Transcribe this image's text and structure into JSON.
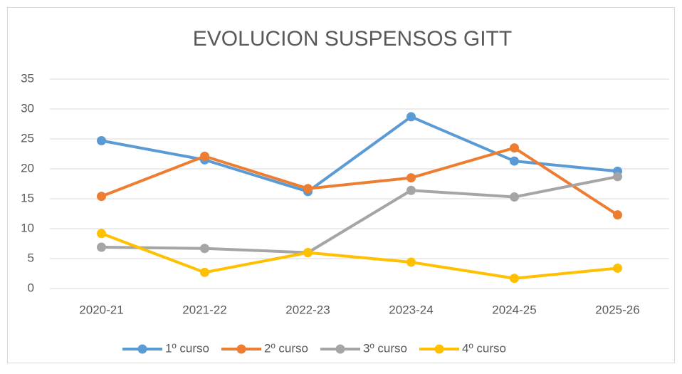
{
  "chart_data": {
    "type": "line",
    "title": "EVOLUCION SUSPENSOS GITT",
    "categories": [
      "2020-21",
      "2021-22",
      "2022-23",
      "2023-24",
      "2024-25",
      "2025-26"
    ],
    "series": [
      {
        "name": "1º curso",
        "color": "#5b9bd5",
        "values": [
          24.7,
          21.5,
          16.2,
          28.7,
          21.3,
          19.6
        ]
      },
      {
        "name": "2º curso",
        "color": "#ed7d31",
        "values": [
          15.4,
          22.1,
          16.7,
          18.5,
          23.5,
          12.3
        ]
      },
      {
        "name": "3º curso",
        "color": "#a5a5a5",
        "values": [
          6.9,
          6.7,
          6.0,
          16.4,
          15.3,
          18.7
        ]
      },
      {
        "name": "4º curso",
        "color": "#ffc000",
        "values": [
          9.2,
          2.7,
          6.0,
          4.4,
          1.7,
          3.4
        ]
      }
    ],
    "ylim": [
      0,
      35
    ],
    "yticks": [
      0,
      5,
      10,
      15,
      20,
      25,
      30,
      35
    ],
    "grid": true,
    "legend": "bottom"
  }
}
